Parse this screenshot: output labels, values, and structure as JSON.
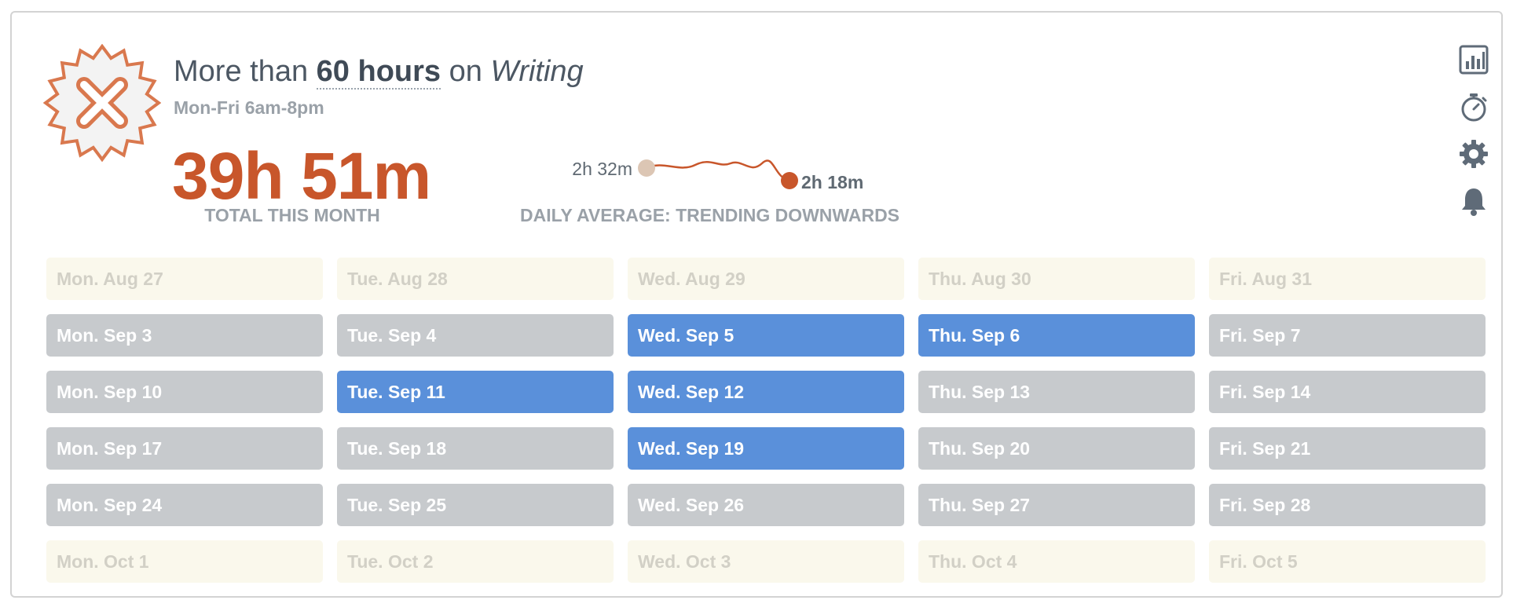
{
  "goal": {
    "prefix": "More than",
    "amount": "60 hours",
    "middle": "on",
    "category": "Writing",
    "schedule": "Mon-Fri 6am-8pm",
    "status_icon": "failed-x-badge-icon"
  },
  "total": {
    "value": "39h 51m",
    "label": "TOTAL THIS MONTH"
  },
  "trend": {
    "start_label": "2h 32m",
    "end_label": "2h 18m",
    "label": "DAILY AVERAGE: TRENDING DOWNWARDS",
    "start_value_minutes": 152,
    "end_value_minutes": 138,
    "color": "#c8562b",
    "start_color": "#dcc6b4"
  },
  "actions": [
    {
      "name": "reports-chart-icon"
    },
    {
      "name": "stopwatch-icon"
    },
    {
      "name": "settings-gear-icon"
    },
    {
      "name": "notification-bell-icon"
    }
  ],
  "calendar": {
    "weeks": [
      [
        {
          "label": "Mon. Aug 27",
          "state": "past-out"
        },
        {
          "label": "Tue. Aug 28",
          "state": "past-out"
        },
        {
          "label": "Wed. Aug 29",
          "state": "past-out"
        },
        {
          "label": "Thu. Aug 30",
          "state": "past-out"
        },
        {
          "label": "Fri. Aug 31",
          "state": "past-out"
        }
      ],
      [
        {
          "label": "Mon. Sep 3",
          "state": "miss"
        },
        {
          "label": "Tue. Sep 4",
          "state": "miss"
        },
        {
          "label": "Wed. Sep 5",
          "state": "hit"
        },
        {
          "label": "Thu. Sep 6",
          "state": "hit"
        },
        {
          "label": "Fri. Sep 7",
          "state": "miss"
        }
      ],
      [
        {
          "label": "Mon. Sep 10",
          "state": "miss"
        },
        {
          "label": "Tue. Sep 11",
          "state": "hit"
        },
        {
          "label": "Wed. Sep 12",
          "state": "hit"
        },
        {
          "label": "Thu. Sep 13",
          "state": "miss"
        },
        {
          "label": "Fri. Sep 14",
          "state": "miss"
        }
      ],
      [
        {
          "label": "Mon. Sep 17",
          "state": "miss"
        },
        {
          "label": "Tue. Sep 18",
          "state": "miss"
        },
        {
          "label": "Wed. Sep 19",
          "state": "hit"
        },
        {
          "label": "Thu. Sep 20",
          "state": "miss"
        },
        {
          "label": "Fri. Sep 21",
          "state": "miss"
        }
      ],
      [
        {
          "label": "Mon. Sep 24",
          "state": "miss"
        },
        {
          "label": "Tue. Sep 25",
          "state": "miss"
        },
        {
          "label": "Wed. Sep 26",
          "state": "miss"
        },
        {
          "label": "Thu. Sep 27",
          "state": "miss"
        },
        {
          "label": "Fri. Sep 28",
          "state": "miss"
        }
      ],
      [
        {
          "label": "Mon. Oct 1",
          "state": "future"
        },
        {
          "label": "Tue. Oct 2",
          "state": "future"
        },
        {
          "label": "Wed. Oct 3",
          "state": "future"
        },
        {
          "label": "Thu. Oct 4",
          "state": "future"
        },
        {
          "label": "Fri. Oct 5",
          "state": "future"
        }
      ]
    ]
  },
  "colors": {
    "hit": "#5a90da",
    "miss": "#c7cacd",
    "future": "#faf8ec",
    "accent": "#c8562b",
    "badge": "#d9784e"
  }
}
